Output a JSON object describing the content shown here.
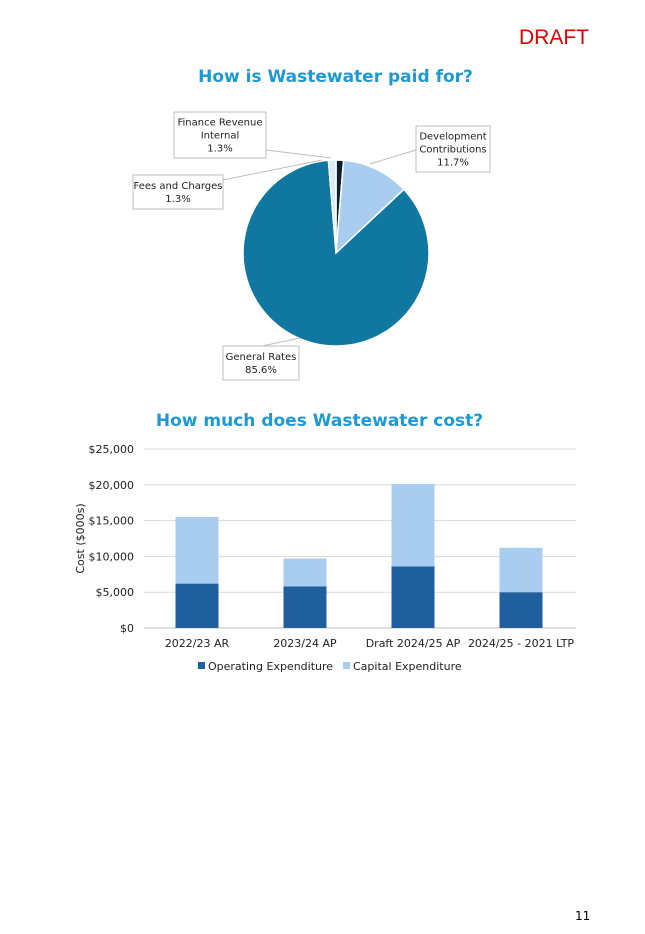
{
  "header": {
    "draft_label": "DRAFT"
  },
  "page_number": "11",
  "colors": {
    "title": "#1c9ad6",
    "draft": "#e00000",
    "general_rates": "#0f77a0",
    "development_contributions": "#a9cdef",
    "fees_and_charges": "#d6ecf7",
    "finance_revenue_internal": "#0d1f2d",
    "operating": "#1f5f9e",
    "capital": "#a9cdef"
  },
  "chart_data": [
    {
      "type": "pie",
      "title": "How is Wastewater paid for?",
      "slices": [
        {
          "label": "Finance Revenue Internal",
          "label_lines": [
            "Finance Revenue",
            "Internal"
          ],
          "value": 1.3,
          "display": "1.3%",
          "color": "#0d1f2d"
        },
        {
          "label": "Development Contributions",
          "label_lines": [
            "Development",
            "Contributions"
          ],
          "value": 11.7,
          "display": "11.7%",
          "color": "#a9cdef"
        },
        {
          "label": "General Rates",
          "label_lines": [
            "General Rates"
          ],
          "value": 85.6,
          "display": "85.6%",
          "color": "#0f77a0"
        },
        {
          "label": "Fees and Charges",
          "label_lines": [
            "Fees and Charges"
          ],
          "value": 1.3,
          "display": "1.3%",
          "color": "#d6ecf7"
        }
      ]
    },
    {
      "type": "bar",
      "stacked": true,
      "title": "How much does Wastewater cost?",
      "ylabel": "Cost ($000s)",
      "xlabel": "",
      "categories": [
        "2022/23 AR",
        "2023/24 AP",
        "Draft 2024/25 AP",
        "2024/25 - 2021 LTP"
      ],
      "ylim": [
        0,
        25000
      ],
      "yticks": [
        0,
        5000,
        10000,
        15000,
        20000,
        25000
      ],
      "ytick_labels": [
        "$0",
        "$5,000",
        "$10,000",
        "$15,000",
        "$20,000",
        "$25,000"
      ],
      "grid": true,
      "legend": "bottom",
      "series": [
        {
          "name": "Operating Expenditure",
          "values": [
            6200,
            5800,
            8600,
            5000
          ],
          "color": "#1f5f9e"
        },
        {
          "name": "Capital Expenditure",
          "values": [
            9300,
            3900,
            11500,
            6200
          ],
          "color": "#a9cdef"
        }
      ]
    }
  ]
}
